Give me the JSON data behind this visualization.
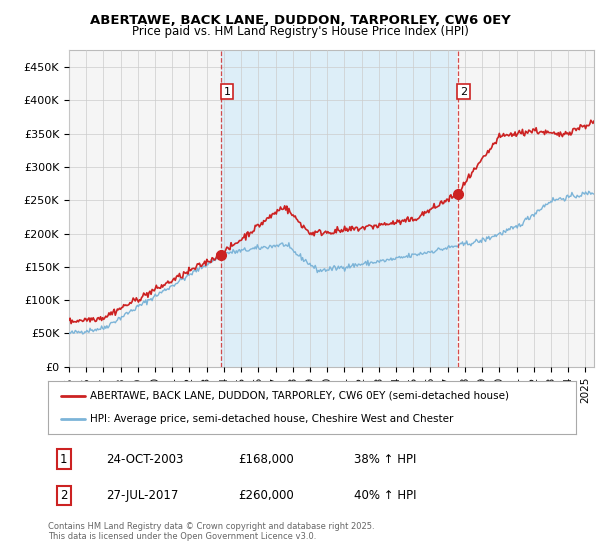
{
  "title": "ABERTAWE, BACK LANE, DUDDON, TARPORLEY, CW6 0EY",
  "subtitle": "Price paid vs. HM Land Registry's House Price Index (HPI)",
  "ylim": [
    0,
    475000
  ],
  "yticks": [
    0,
    50000,
    100000,
    150000,
    200000,
    250000,
    300000,
    350000,
    400000,
    450000
  ],
  "ytick_labels": [
    "£0",
    "£50K",
    "£100K",
    "£150K",
    "£200K",
    "£250K",
    "£300K",
    "£350K",
    "£400K",
    "£450K"
  ],
  "hpi_color": "#7cb4d8",
  "price_color": "#cc2222",
  "marker1_x": 2003.82,
  "marker1_y": 168000,
  "marker2_x": 2017.57,
  "marker2_y": 260000,
  "legend_line1": "ABERTAWE, BACK LANE, DUDDON, TARPORLEY, CW6 0EY (semi-detached house)",
  "legend_line2": "HPI: Average price, semi-detached house, Cheshire West and Chester",
  "note1_num": "1",
  "note1_date": "24-OCT-2003",
  "note1_price": "£168,000",
  "note1_hpi": "38% ↑ HPI",
  "note2_num": "2",
  "note2_date": "27-JUL-2017",
  "note2_price": "£260,000",
  "note2_hpi": "40% ↑ HPI",
  "footer": "Contains HM Land Registry data © Crown copyright and database right 2025.\nThis data is licensed under the Open Government Licence v3.0.",
  "bg_color": "#ffffff",
  "grid_color": "#cccccc",
  "plot_bg": "#f5f5f5",
  "highlight_bg": "#ddeef8",
  "xmin": 1995,
  "xmax": 2025.5
}
